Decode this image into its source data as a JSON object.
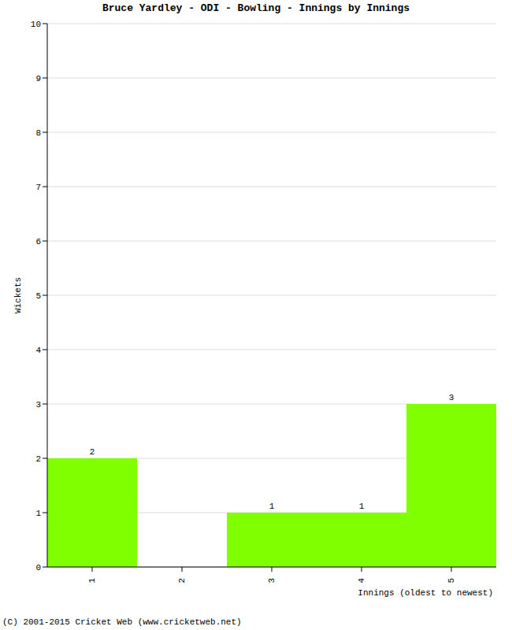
{
  "chart_data": {
    "type": "bar",
    "title": "Bruce Yardley - ODI - Bowling - Innings by Innings",
    "x_label": "Innings (oldest to newest)",
    "y_label": "Wickets",
    "annotations": [
      "(C) 2001-2015 Cricket Web (www.cricketweb.net)"
    ],
    "categories": [
      "1",
      "2",
      "3",
      "4",
      "5"
    ],
    "values": [
      2,
      0,
      1,
      1,
      3
    ],
    "color": "#80ff00",
    "ylim": [
      0,
      10
    ],
    "yticks": [
      0,
      1,
      2,
      3,
      4,
      5,
      6,
      7,
      8,
      9,
      10
    ],
    "grid": true,
    "data_labels": true
  }
}
